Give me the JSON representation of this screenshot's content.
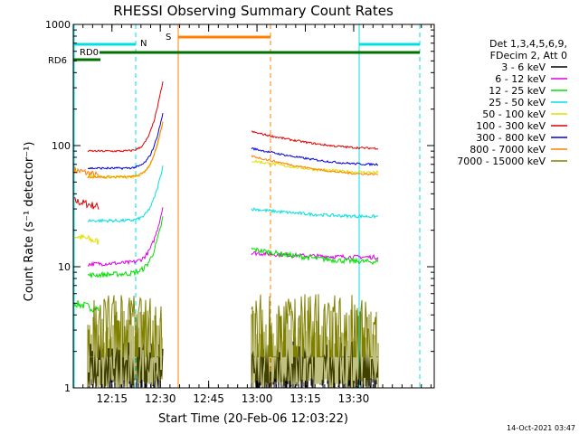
{
  "chart_data": {
    "type": "line",
    "title": "RHESSI Observing Summary Count Rates",
    "xlabel": "Start Time (20-Feb-06 12:03:22)",
    "ylabel": "Count Rate (s⁻¹ detector⁻¹)",
    "yscale": "log",
    "ylim": [
      1,
      1000
    ],
    "xlim_min": [
      0,
      112
    ],
    "y_ticks": [
      {
        "value": 1,
        "label": "1"
      },
      {
        "value": 10,
        "label": "10"
      },
      {
        "value": 100,
        "label": "100"
      },
      {
        "value": 1000,
        "label": "1000"
      }
    ],
    "x_ticks": [
      {
        "value": 12,
        "label": "12:15"
      },
      {
        "value": 27,
        "label": "12:30"
      },
      {
        "value": 42,
        "label": "12:45"
      },
      {
        "value": 57,
        "label": "13:00"
      },
      {
        "value": 72,
        "label": "13:15"
      },
      {
        "value": 87,
        "label": "13:30"
      }
    ],
    "gaps": [
      [
        28.5,
        55
      ],
      [
        95,
        112
      ]
    ],
    "legend_header": [
      "Det 1,3,4,5,6,9,",
      "FDecim 2, Att 0"
    ],
    "series": [
      {
        "name": "3 - 6 keV",
        "color": "#000000",
        "before": {
          "start": 1.2,
          "end": 1.2,
          "rise": 0
        },
        "after": {
          "start": 1.2,
          "end": 1.2
        },
        "noise": 0.25
      },
      {
        "name": "6 - 12 keV",
        "color": "#e000e0",
        "before": {
          "start": 10.5,
          "end": 11,
          "rise": 2
        },
        "after": {
          "start": 13,
          "end": 12
        },
        "noise": 0.04
      },
      {
        "name": "12 - 25 keV",
        "color": "#00e000",
        "before": {
          "start": 8.5,
          "end": 9,
          "rise": 2
        },
        "after": {
          "start": 14,
          "end": 11
        },
        "noise": 0.05
      },
      {
        "name": "25 - 50 keV",
        "color": "#00e0e0",
        "before": {
          "start": 24,
          "end": 24,
          "rise": 2
        },
        "after": {
          "start": 30,
          "end": 26
        },
        "noise": 0.03
      },
      {
        "name": "50 - 100 keV",
        "color": "#e0e000",
        "before": {
          "start": 55,
          "end": 55,
          "rise": 2
        },
        "after": {
          "start": 75,
          "end": 60
        },
        "noise": 0.03
      },
      {
        "name": "100 - 300 keV",
        "color": "#e00000",
        "before": {
          "start": 90,
          "end": 90,
          "rise": 3
        },
        "after": {
          "start": 130,
          "end": 95
        },
        "noise": 0.02
      },
      {
        "name": "300 - 800 keV",
        "color": "#0000e0",
        "before": {
          "start": 65,
          "end": 65,
          "rise": 2
        },
        "after": {
          "start": 95,
          "end": 70
        },
        "noise": 0.02
      },
      {
        "name": "800 - 7000 keV",
        "color": "#ff8000",
        "before": {
          "start": 55,
          "end": 55,
          "rise": 2
        },
        "after": {
          "start": 82,
          "end": 58
        },
        "noise": 0.02
      },
      {
        "name": "7000 - 15000 keV",
        "color": "#808000",
        "before": {
          "start": 3,
          "end": 3,
          "rise": 0
        },
        "after": {
          "start": 3,
          "end": 3
        },
        "noise": 0.2
      }
    ],
    "early_segment": [
      {
        "name": "800 - 7000 keV",
        "color": "#ff8000",
        "value": 63
      },
      {
        "name": "100 - 300 keV",
        "color": "#e00000",
        "value": 35
      },
      {
        "name": "50 - 100 keV",
        "color": "#e0e000",
        "value": 18
      },
      {
        "name": "12 - 25 keV",
        "color": "#00e000",
        "value": 5
      }
    ],
    "status_bars": [
      {
        "label": "RD6",
        "color": "#007000"
      },
      {
        "label": "RD0",
        "color": "#007000"
      },
      {
        "label": "N",
        "color": "#00e0e0"
      },
      {
        "label": "S",
        "color": "#ff8000"
      }
    ],
    "timestamp": "14-Oct-2021 03:47"
  }
}
